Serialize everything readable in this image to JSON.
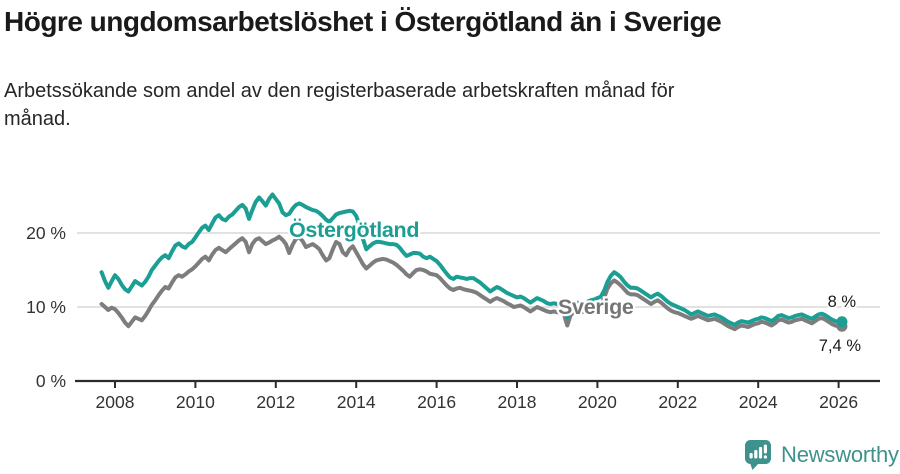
{
  "header": {
    "title": "Högre ungdomsarbetslöshet i Östergötland än i Sverige",
    "subtitle": "Arbetssökande som andel av den registerbaserade arbetskraften månad för månad."
  },
  "chart_data": {
    "type": "line",
    "title": "Högre ungdomsarbetslöshet i Östergötland än i Sverige",
    "subtitle": "Arbetssökande som andel av den registerbaserade arbetskraften månad för månad.",
    "x_unit": "month",
    "x_start": "2007-09",
    "x_end": "2026-02",
    "x_tick_labels": [
      "2008",
      "2010",
      "2012",
      "2014",
      "2016",
      "2018",
      "2020",
      "2022",
      "2024",
      "2026"
    ],
    "x_tick_years": [
      2008,
      2010,
      2012,
      2014,
      2016,
      2018,
      2020,
      2022,
      2024,
      2026
    ],
    "yticks": [
      0,
      10,
      20
    ],
    "ytick_labels": [
      "0 %",
      "10 %",
      "20 %"
    ],
    "ylim": [
      0,
      26
    ],
    "grid": "horizontal",
    "legend_position": "inline-labels",
    "axis_color": "#2b2b2b",
    "grid_color": "#d9d9d9",
    "tick_label_color": "#333333",
    "series": [
      {
        "name": "Östergötland",
        "color": "#1B9E94",
        "label_color": "#1B9E94",
        "end_label": "8 %",
        "end_value": 8.0,
        "values": [
          14.7,
          13.5,
          12.6,
          13.5,
          14.3,
          13.8,
          13.0,
          12.4,
          12.1,
          12.8,
          13.5,
          13.2,
          12.9,
          13.4,
          14.1,
          15.0,
          15.6,
          16.2,
          16.7,
          17.0,
          16.6,
          17.5,
          18.3,
          18.6,
          18.2,
          18.0,
          18.5,
          18.8,
          19.4,
          20.1,
          20.7,
          21.0,
          20.4,
          21.3,
          22.1,
          22.4,
          21.9,
          21.7,
          22.2,
          22.5,
          23.0,
          23.5,
          23.8,
          23.3,
          21.9,
          23.1,
          24.2,
          24.8,
          24.3,
          23.7,
          24.6,
          25.2,
          24.6,
          24.0,
          22.8,
          22.4,
          22.6,
          23.3,
          23.8,
          24.0,
          23.8,
          23.5,
          23.3,
          23.1,
          23.0,
          22.7,
          22.3,
          21.8,
          21.5,
          22.0,
          22.5,
          22.7,
          22.8,
          22.9,
          23.0,
          22.9,
          22.3,
          21.0,
          19.2,
          17.8,
          18.2,
          18.6,
          18.8,
          18.8,
          18.7,
          18.6,
          18.5,
          18.5,
          18.4,
          18.0,
          17.4,
          16.9,
          17.1,
          17.3,
          17.3,
          17.2,
          16.8,
          16.6,
          16.8,
          16.5,
          16.2,
          15.7,
          15.1,
          14.5,
          14.0,
          13.8,
          14.1,
          14.0,
          13.9,
          13.8,
          13.9,
          13.9,
          13.6,
          13.3,
          12.9,
          12.5,
          12.1,
          12.4,
          12.7,
          12.5,
          12.2,
          11.9,
          11.7,
          11.5,
          11.3,
          11.4,
          11.2,
          10.9,
          10.6,
          10.9,
          11.2,
          11.0,
          10.8,
          10.5,
          10.4,
          10.5,
          10.4,
          10.3,
          10.1,
          8.6,
          10.0,
          10.4,
          10.6,
          10.4,
          10.5,
          10.7,
          10.9,
          11.0,
          11.2,
          11.4,
          12.2,
          13.4,
          14.2,
          14.7,
          14.4,
          14.0,
          13.4,
          12.9,
          12.6,
          12.6,
          12.5,
          12.2,
          11.9,
          11.6,
          11.3,
          11.6,
          11.8,
          11.5,
          11.1,
          10.7,
          10.4,
          10.2,
          10.0,
          9.8,
          9.6,
          9.3,
          9.0,
          9.2,
          9.4,
          9.2,
          9.0,
          8.8,
          8.9,
          9.0,
          8.8,
          8.6,
          8.3,
          8.0,
          7.8,
          7.6,
          7.9,
          8.1,
          8.0,
          7.9,
          8.1,
          8.3,
          8.4,
          8.6,
          8.5,
          8.3,
          8.1,
          8.4,
          8.8,
          8.9,
          8.7,
          8.5,
          8.6,
          8.8,
          8.9,
          9.0,
          8.8,
          8.6,
          8.4,
          8.7,
          9.0,
          9.1,
          8.9,
          8.6,
          8.3,
          8.1,
          8.0,
          8.0
        ]
      },
      {
        "name": "Sverige",
        "color": "#7D7D7D",
        "label_color": "#757575",
        "end_label": "7,4 %",
        "end_value": 7.4,
        "values": [
          10.4,
          10.0,
          9.6,
          9.9,
          9.7,
          9.2,
          8.6,
          7.9,
          7.4,
          8.0,
          8.6,
          8.4,
          8.2,
          8.8,
          9.5,
          10.3,
          10.9,
          11.6,
          12.2,
          12.7,
          12.5,
          13.3,
          14.0,
          14.3,
          14.1,
          14.4,
          14.8,
          15.1,
          15.5,
          16.0,
          16.5,
          16.8,
          16.3,
          17.1,
          17.7,
          18.0,
          17.7,
          17.4,
          17.8,
          18.2,
          18.6,
          19.0,
          19.3,
          18.8,
          17.4,
          18.5,
          19.1,
          19.3,
          18.9,
          18.5,
          18.7,
          19.0,
          19.2,
          19.5,
          19.1,
          18.5,
          17.3,
          18.4,
          19.2,
          19.4,
          18.9,
          18.1,
          18.3,
          18.5,
          18.2,
          17.8,
          17.0,
          16.3,
          16.6,
          17.8,
          18.8,
          18.5,
          17.4,
          17.0,
          17.8,
          18.2,
          17.4,
          16.6,
          15.8,
          15.2,
          15.6,
          16.0,
          16.3,
          16.4,
          16.5,
          16.4,
          16.2,
          16.0,
          15.7,
          15.3,
          14.9,
          14.4,
          14.1,
          14.6,
          15.0,
          15.1,
          15.0,
          14.8,
          14.5,
          14.4,
          14.3,
          13.9,
          13.4,
          12.9,
          12.5,
          12.3,
          12.5,
          12.6,
          12.4,
          12.3,
          12.2,
          12.1,
          11.9,
          11.6,
          11.3,
          11.0,
          10.7,
          11.0,
          11.2,
          11.0,
          10.8,
          10.5,
          10.3,
          10.0,
          10.1,
          10.2,
          10.0,
          9.7,
          9.4,
          9.7,
          10.0,
          9.8,
          9.6,
          9.4,
          9.3,
          9.4,
          9.3,
          9.2,
          9.0,
          7.5,
          8.9,
          9.3,
          9.5,
          9.3,
          9.4,
          9.6,
          9.8,
          9.9,
          10.1,
          10.3,
          11.2,
          12.5,
          13.2,
          13.6,
          13.3,
          12.9,
          12.4,
          11.9,
          11.7,
          11.7,
          11.6,
          11.3,
          11.0,
          10.7,
          10.4,
          10.7,
          10.9,
          10.6,
          10.2,
          9.8,
          9.5,
          9.3,
          9.2,
          9.0,
          8.8,
          8.6,
          8.4,
          8.6,
          8.8,
          8.6,
          8.4,
          8.2,
          8.3,
          8.4,
          8.2,
          8.0,
          7.7,
          7.4,
          7.2,
          7.0,
          7.3,
          7.5,
          7.4,
          7.3,
          7.5,
          7.7,
          7.8,
          8.0,
          7.9,
          7.7,
          7.5,
          7.8,
          8.2,
          8.3,
          8.1,
          7.9,
          8.0,
          8.2,
          8.3,
          8.4,
          8.2,
          8.0,
          7.8,
          8.1,
          8.4,
          8.5,
          8.3,
          8.0,
          7.7,
          7.5,
          7.4,
          7.4
        ]
      }
    ]
  },
  "footer": {
    "logo_text": "Newsworthy",
    "logo_color": "#3F918C"
  }
}
